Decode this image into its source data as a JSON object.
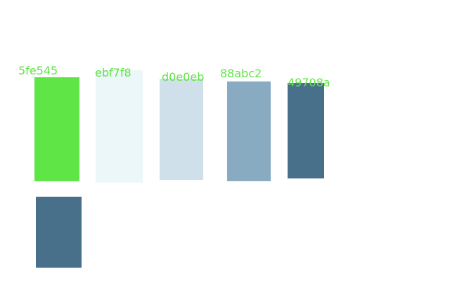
{
  "swatches": [
    {
      "label": "5fe545",
      "color": "#5fe545"
    },
    {
      "label": "ebf7f8",
      "color": "#ebf7f8"
    },
    {
      "label": "d0e0eb",
      "color": "#d0e0eb"
    },
    {
      "label": "88abc2",
      "color": "#88abc2"
    },
    {
      "label": "49708a",
      "color": "#49708a"
    },
    {
      "label": "",
      "color": "#49708a"
    }
  ],
  "label_color": "#5fe545"
}
